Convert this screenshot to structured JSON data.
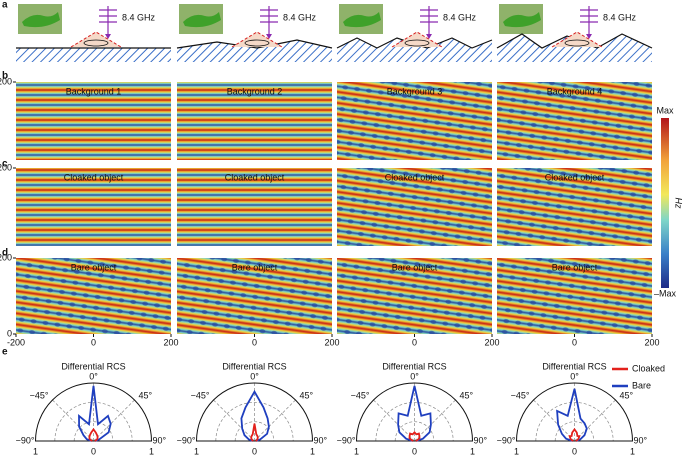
{
  "panel_labels": [
    "a",
    "b",
    "c",
    "d",
    "e"
  ],
  "scenes": [
    {
      "frequency": "8.4 GHz"
    },
    {
      "frequency": "8.4 GHz"
    },
    {
      "frequency": "8.4 GHz"
    },
    {
      "frequency": "8.4 GHz"
    }
  ],
  "field_maps": {
    "rows": [
      {
        "titles": [
          "Background 1",
          "Background 2",
          "Background 3",
          "Background 4"
        ]
      },
      {
        "titles": [
          "Cloaked object",
          "Cloaked object",
          "Cloaked object",
          "Cloaked object"
        ]
      },
      {
        "titles": [
          "Bare object",
          "Bare object",
          "Bare object",
          "Bare object"
        ]
      }
    ],
    "xlim": [
      -200,
      200
    ],
    "ylim": [
      0,
      200
    ],
    "yticks": [
      [
        200
      ],
      [
        200
      ],
      [
        200,
        0
      ]
    ],
    "xticks": [
      [
        -200,
        0,
        200
      ],
      [
        0,
        200
      ],
      [
        0,
        200
      ],
      [
        0,
        200
      ]
    ],
    "colorbar": {
      "max": "Max",
      "min": "–Max",
      "quantity": "Hz"
    }
  },
  "polar": {
    "angles": [
      -90,
      -75,
      -60,
      -45,
      -30,
      -15,
      0,
      15,
      30,
      45,
      60,
      75,
      90
    ],
    "legend": [
      {
        "name": "Cloaked",
        "color": "#e3211c"
      },
      {
        "name": "Bare",
        "color": "#1f3fbf"
      }
    ],
    "panels": [
      {
        "title": "Differential RCS",
        "angle_labels": [
          "−90°",
          "−45°",
          "0°",
          "45°",
          "90°"
        ],
        "radial_labels": [
          "1",
          "0",
          "1"
        ],
        "cloaked": [
          0.02,
          0.05,
          0.08,
          0.1,
          0.12,
          0.15,
          0.2,
          0.15,
          0.12,
          0.1,
          0.08,
          0.05,
          0.02
        ],
        "bare": [
          0.03,
          0.12,
          0.2,
          0.35,
          0.5,
          0.3,
          0.95,
          0.3,
          0.5,
          0.42,
          0.3,
          0.1,
          0.03
        ]
      },
      {
        "title": "Differential RCS",
        "angle_labels": [
          "−90°",
          "−45°",
          "0°",
          "45°",
          "90°"
        ],
        "radial_labels": [
          "1",
          "0",
          "1"
        ],
        "cloaked": [
          0.02,
          0.04,
          0.06,
          0.08,
          0.1,
          0.12,
          0.3,
          0.12,
          0.1,
          0.08,
          0.06,
          0.04,
          0.02
        ],
        "bare": [
          0.03,
          0.1,
          0.2,
          0.3,
          0.45,
          0.6,
          0.85,
          0.6,
          0.45,
          0.35,
          0.25,
          0.1,
          0.03
        ]
      },
      {
        "title": "Differential RCS",
        "angle_labels": [
          "−90°",
          "−45°",
          "0°",
          "45°",
          "90°"
        ],
        "radial_labels": [
          "1",
          "0",
          "1"
        ],
        "cloaked": [
          0.02,
          0.05,
          0.1,
          0.12,
          0.15,
          0.12,
          0.15,
          0.12,
          0.15,
          0.12,
          0.1,
          0.05,
          0.02
        ],
        "bare": [
          0.03,
          0.15,
          0.3,
          0.4,
          0.55,
          0.45,
          0.95,
          0.45,
          0.55,
          0.4,
          0.3,
          0.15,
          0.03
        ]
      },
      {
        "title": "Differential RCS",
        "angle_labels": [
          "−90°",
          "−45°",
          "0°",
          "45°",
          "90°"
        ],
        "radial_labels": [
          "1",
          "0",
          "1"
        ],
        "cloaked": [
          0.02,
          0.05,
          0.08,
          0.12,
          0.1,
          0.15,
          0.2,
          0.15,
          0.1,
          0.12,
          0.08,
          0.05,
          0.02
        ],
        "bare": [
          0.03,
          0.15,
          0.25,
          0.4,
          0.6,
          0.45,
          0.9,
          0.4,
          0.35,
          0.3,
          0.2,
          0.1,
          0.03
        ]
      }
    ]
  }
}
